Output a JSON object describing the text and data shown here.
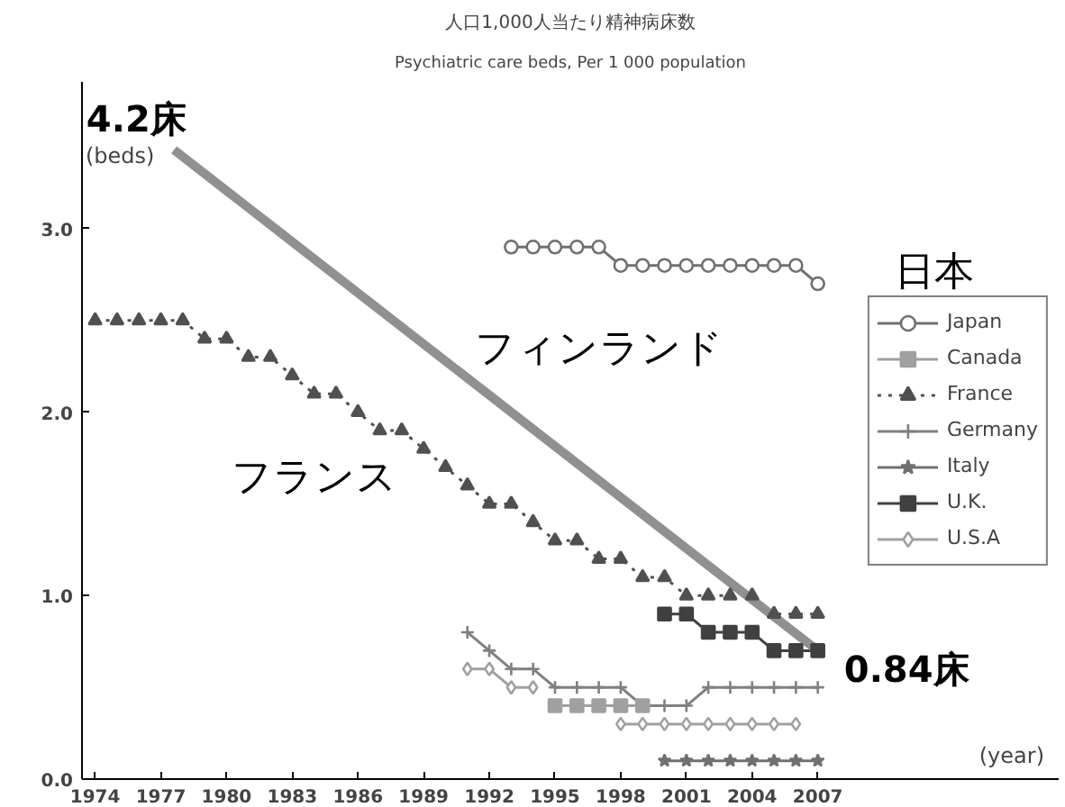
{
  "chart_data": {
    "type": "line",
    "title": "人口1,000人当たり精神病床数",
    "subtitle": "Psychiatric care beds, Per 1 000 population",
    "xlabel": "(year)",
    "ylabel": "(beds)",
    "xlim": [
      1973.4,
      2018
    ],
    "ylim": [
      0,
      3.8
    ],
    "xticks": [
      1974,
      1977,
      1980,
      1983,
      1986,
      1989,
      1992,
      1995,
      1998,
      2001,
      2004,
      2007
    ],
    "yticks": [
      {
        "value": 0,
        "label": "0.0"
      },
      {
        "value": 1,
        "label": "1.0"
      },
      {
        "value": 2,
        "label": "2.0"
      },
      {
        "value": 3,
        "label": "3.0"
      }
    ],
    "grid": false,
    "legend": "right",
    "series": [
      {
        "name": "Japan",
        "color": "#707070",
        "marker": "circle",
        "line_style": "solid",
        "x": [
          1993,
          1994,
          1995,
          1996,
          1997,
          1998,
          1999,
          2000,
          2001,
          2002,
          2003,
          2004,
          2005,
          2006,
          2007
        ],
        "values": [
          2.9,
          2.9,
          2.9,
          2.9,
          2.9,
          2.8,
          2.8,
          2.8,
          2.8,
          2.8,
          2.8,
          2.8,
          2.8,
          2.8,
          2.7
        ]
      },
      {
        "name": "Canada",
        "color": "#a0a0a0",
        "marker": "square",
        "line_style": "solid",
        "x": [
          1995,
          1996,
          1997,
          1998,
          1999
        ],
        "values": [
          0.4,
          0.4,
          0.4,
          0.4,
          0.4
        ]
      },
      {
        "name": "France",
        "color": "#505050",
        "marker": "triangle",
        "line_style": "dotted",
        "x": [
          1974,
          1975,
          1976,
          1977,
          1978,
          1979,
          1980,
          1981,
          1982,
          1983,
          1984,
          1985,
          1986,
          1987,
          1988,
          1989,
          1990,
          1991,
          1992,
          1993,
          1994,
          1995,
          1996,
          1997,
          1998,
          1999,
          2000,
          2001,
          2002,
          2003,
          2004,
          2005,
          2006,
          2007
        ],
        "values": [
          2.5,
          2.5,
          2.5,
          2.5,
          2.5,
          2.4,
          2.4,
          2.3,
          2.3,
          2.2,
          2.1,
          2.1,
          2.0,
          1.9,
          1.9,
          1.8,
          1.7,
          1.6,
          1.5,
          1.5,
          1.4,
          1.3,
          1.3,
          1.2,
          1.2,
          1.1,
          1.1,
          1.0,
          1.0,
          1.0,
          1.0,
          0.9,
          0.9,
          0.9
        ]
      },
      {
        "name": "Germany",
        "color": "#808080",
        "marker": "cross",
        "line_style": "solid",
        "x": [
          1991,
          1992,
          1993,
          1994,
          1995,
          1996,
          1997,
          1998,
          1999,
          2000,
          2001,
          2002,
          2003,
          2004,
          2005,
          2006,
          2007
        ],
        "values": [
          0.8,
          0.7,
          0.6,
          0.6,
          0.5,
          0.5,
          0.5,
          0.5,
          0.4,
          0.4,
          0.4,
          0.5,
          0.5,
          0.5,
          0.5,
          0.5,
          0.5
        ]
      },
      {
        "name": "Italy",
        "color": "#707070",
        "marker": "star",
        "line_style": "solid",
        "x": [
          2000,
          2001,
          2002,
          2003,
          2004,
          2005,
          2006,
          2007
        ],
        "values": [
          0.1,
          0.1,
          0.1,
          0.1,
          0.1,
          0.1,
          0.1,
          0.1
        ]
      },
      {
        "name": "U.K.",
        "color": "#404040",
        "marker": "square",
        "line_style": "solid",
        "x": [
          2000,
          2001,
          2002,
          2003,
          2004,
          2005,
          2006,
          2007
        ],
        "values": [
          0.9,
          0.9,
          0.8,
          0.8,
          0.8,
          0.7,
          0.7,
          0.7
        ]
      },
      {
        "name": "U.S.A",
        "color": "#a0a0a0",
        "marker": "diamond",
        "line_style": "solid",
        "x": [
          1991,
          1992,
          1993,
          1994,
          1995,
          1996,
          1997,
          1998,
          1999,
          2000,
          2001,
          2002,
          2003,
          2004,
          2005,
          2006
        ],
        "values": [
          0.6,
          0.6,
          0.5,
          0.5,
          null,
          null,
          null,
          0.3,
          0.3,
          0.3,
          0.3,
          0.3,
          0.3,
          0.3,
          0.3,
          0.3
        ]
      },
      {
        "color": "#909090",
        "marker": "none",
        "line_style": "solid",
        "x": [
          1977.6,
          2007
        ],
        "values": [
          3.43,
          0.7
        ]
      }
    ],
    "annotations": [
      "4.2床",
      "0.84床",
      "日本",
      "フィンランド",
      "フランス"
    ]
  }
}
